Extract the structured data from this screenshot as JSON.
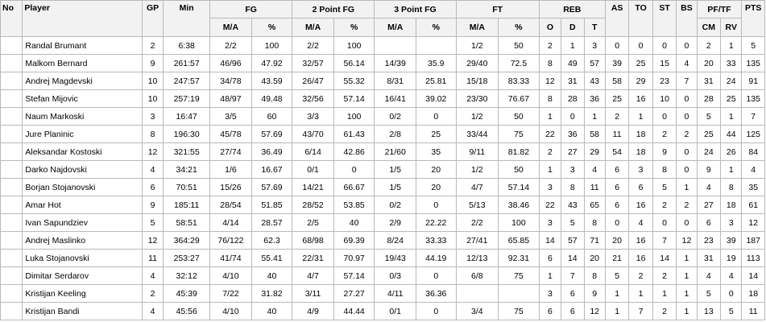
{
  "headers": {
    "no": "No",
    "player": "Player",
    "gp": "GP",
    "min": "Min",
    "fg": "FG",
    "fg2": "2 Point FG",
    "fg3": "3 Point FG",
    "ft": "FT",
    "reb": "REB",
    "as": "AS",
    "to": "TO",
    "st": "ST",
    "bs": "BS",
    "pftf": "PF/TF",
    "pts": "PTS",
    "ma": "M/A",
    "pct": "%",
    "o": "O",
    "d": "D",
    "t": "T",
    "cm": "CM",
    "rv": "RV"
  },
  "rows": [
    {
      "no": "",
      "player": "Randal Brumant",
      "gp": "2",
      "min": "6:38",
      "fg_ma": "2/2",
      "fg_pct": "100",
      "fg2_ma": "2/2",
      "fg2_pct": "100",
      "fg3_ma": "",
      "fg3_pct": "",
      "ft_ma": "1/2",
      "ft_pct": "50",
      "o": "2",
      "d": "1",
      "t": "3",
      "as": "0",
      "to": "0",
      "st": "0",
      "bs": "0",
      "cm": "2",
      "rv": "1",
      "pts": "5"
    },
    {
      "no": "",
      "player": "Malkom Bernard",
      "gp": "9",
      "min": "261:57",
      "fg_ma": "46/96",
      "fg_pct": "47.92",
      "fg2_ma": "32/57",
      "fg2_pct": "56.14",
      "fg3_ma": "14/39",
      "fg3_pct": "35.9",
      "ft_ma": "29/40",
      "ft_pct": "72.5",
      "o": "8",
      "d": "49",
      "t": "57",
      "as": "39",
      "to": "25",
      "st": "15",
      "bs": "4",
      "cm": "20",
      "rv": "33",
      "pts": "135"
    },
    {
      "no": "",
      "player": "Andrej Magdevski",
      "gp": "10",
      "min": "247:57",
      "fg_ma": "34/78",
      "fg_pct": "43.59",
      "fg2_ma": "26/47",
      "fg2_pct": "55.32",
      "fg3_ma": "8/31",
      "fg3_pct": "25.81",
      "ft_ma": "15/18",
      "ft_pct": "83.33",
      "o": "12",
      "d": "31",
      "t": "43",
      "as": "58",
      "to": "29",
      "st": "23",
      "bs": "7",
      "cm": "31",
      "rv": "24",
      "pts": "91"
    },
    {
      "no": "",
      "player": "Stefan Mijovic",
      "gp": "10",
      "min": "257:19",
      "fg_ma": "48/97",
      "fg_pct": "49.48",
      "fg2_ma": "32/56",
      "fg2_pct": "57.14",
      "fg3_ma": "16/41",
      "fg3_pct": "39.02",
      "ft_ma": "23/30",
      "ft_pct": "76.67",
      "o": "8",
      "d": "28",
      "t": "36",
      "as": "25",
      "to": "16",
      "st": "10",
      "bs": "0",
      "cm": "28",
      "rv": "25",
      "pts": "135"
    },
    {
      "no": "",
      "player": "Naum Markoski",
      "gp": "3",
      "min": "16:47",
      "fg_ma": "3/5",
      "fg_pct": "60",
      "fg2_ma": "3/3",
      "fg2_pct": "100",
      "fg3_ma": "0/2",
      "fg3_pct": "0",
      "ft_ma": "1/2",
      "ft_pct": "50",
      "o": "1",
      "d": "0",
      "t": "1",
      "as": "2",
      "to": "1",
      "st": "0",
      "bs": "0",
      "cm": "5",
      "rv": "1",
      "pts": "7"
    },
    {
      "no": "",
      "player": "Jure Planinic",
      "gp": "8",
      "min": "196:30",
      "fg_ma": "45/78",
      "fg_pct": "57.69",
      "fg2_ma": "43/70",
      "fg2_pct": "61.43",
      "fg3_ma": "2/8",
      "fg3_pct": "25",
      "ft_ma": "33/44",
      "ft_pct": "75",
      "o": "22",
      "d": "36",
      "t": "58",
      "as": "11",
      "to": "18",
      "st": "2",
      "bs": "2",
      "cm": "25",
      "rv": "44",
      "pts": "125"
    },
    {
      "no": "",
      "player": "Aleksandar Kostoski",
      "gp": "12",
      "min": "321:55",
      "fg_ma": "27/74",
      "fg_pct": "36.49",
      "fg2_ma": "6/14",
      "fg2_pct": "42.86",
      "fg3_ma": "21/60",
      "fg3_pct": "35",
      "ft_ma": "9/11",
      "ft_pct": "81.82",
      "o": "2",
      "d": "27",
      "t": "29",
      "as": "54",
      "to": "18",
      "st": "9",
      "bs": "0",
      "cm": "24",
      "rv": "26",
      "pts": "84"
    },
    {
      "no": "",
      "player": "Darko Najdovski",
      "gp": "4",
      "min": "34:21",
      "fg_ma": "1/6",
      "fg_pct": "16.67",
      "fg2_ma": "0/1",
      "fg2_pct": "0",
      "fg3_ma": "1/5",
      "fg3_pct": "20",
      "ft_ma": "1/2",
      "ft_pct": "50",
      "o": "1",
      "d": "3",
      "t": "4",
      "as": "6",
      "to": "3",
      "st": "8",
      "bs": "0",
      "cm": "9",
      "rv": "1",
      "pts": "4"
    },
    {
      "no": "",
      "player": "Borjan Stojanovski",
      "gp": "6",
      "min": "70:51",
      "fg_ma": "15/26",
      "fg_pct": "57.69",
      "fg2_ma": "14/21",
      "fg2_pct": "66.67",
      "fg3_ma": "1/5",
      "fg3_pct": "20",
      "ft_ma": "4/7",
      "ft_pct": "57.14",
      "o": "3",
      "d": "8",
      "t": "11",
      "as": "6",
      "to": "6",
      "st": "5",
      "bs": "1",
      "cm": "4",
      "rv": "8",
      "pts": "35"
    },
    {
      "no": "",
      "player": "Amar Hot",
      "gp": "9",
      "min": "185:11",
      "fg_ma": "28/54",
      "fg_pct": "51.85",
      "fg2_ma": "28/52",
      "fg2_pct": "53.85",
      "fg3_ma": "0/2",
      "fg3_pct": "0",
      "ft_ma": "5/13",
      "ft_pct": "38.46",
      "o": "22",
      "d": "43",
      "t": "65",
      "as": "6",
      "to": "16",
      "st": "2",
      "bs": "2",
      "cm": "27",
      "rv": "18",
      "pts": "61"
    },
    {
      "no": "",
      "player": "Ivan Sapundziev",
      "gp": "5",
      "min": "58:51",
      "fg_ma": "4/14",
      "fg_pct": "28.57",
      "fg2_ma": "2/5",
      "fg2_pct": "40",
      "fg3_ma": "2/9",
      "fg3_pct": "22.22",
      "ft_ma": "2/2",
      "ft_pct": "100",
      "o": "3",
      "d": "5",
      "t": "8",
      "as": "0",
      "to": "4",
      "st": "0",
      "bs": "0",
      "cm": "6",
      "rv": "3",
      "pts": "12"
    },
    {
      "no": "",
      "player": "Andrej Maslinko",
      "gp": "12",
      "min": "364:29",
      "fg_ma": "76/122",
      "fg_pct": "62.3",
      "fg2_ma": "68/98",
      "fg2_pct": "69.39",
      "fg3_ma": "8/24",
      "fg3_pct": "33.33",
      "ft_ma": "27/41",
      "ft_pct": "65.85",
      "o": "14",
      "d": "57",
      "t": "71",
      "as": "20",
      "to": "16",
      "st": "7",
      "bs": "12",
      "cm": "23",
      "rv": "39",
      "pts": "187"
    },
    {
      "no": "",
      "player": "Luka Stojanovski",
      "gp": "11",
      "min": "253:27",
      "fg_ma": "41/74",
      "fg_pct": "55.41",
      "fg2_ma": "22/31",
      "fg2_pct": "70.97",
      "fg3_ma": "19/43",
      "fg3_pct": "44.19",
      "ft_ma": "12/13",
      "ft_pct": "92.31",
      "o": "6",
      "d": "14",
      "t": "20",
      "as": "21",
      "to": "16",
      "st": "14",
      "bs": "1",
      "cm": "31",
      "rv": "19",
      "pts": "113"
    },
    {
      "no": "",
      "player": "Dimitar Serdarov",
      "gp": "4",
      "min": "32:12",
      "fg_ma": "4/10",
      "fg_pct": "40",
      "fg2_ma": "4/7",
      "fg2_pct": "57.14",
      "fg3_ma": "0/3",
      "fg3_pct": "0",
      "ft_ma": "6/8",
      "ft_pct": "75",
      "o": "1",
      "d": "7",
      "t": "8",
      "as": "5",
      "to": "2",
      "st": "2",
      "bs": "1",
      "cm": "4",
      "rv": "4",
      "pts": "14"
    },
    {
      "no": "",
      "player": "Kristijan Keeling",
      "gp": "2",
      "min": "45:39",
      "fg_ma": "7/22",
      "fg_pct": "31.82",
      "fg2_ma": "3/11",
      "fg2_pct": "27.27",
      "fg3_ma": "4/11",
      "fg3_pct": "36.36",
      "ft_ma": "",
      "ft_pct": "",
      "o": "3",
      "d": "6",
      "t": "9",
      "as": "1",
      "to": "1",
      "st": "1",
      "bs": "1",
      "cm": "5",
      "rv": "0",
      "pts": "18"
    },
    {
      "no": "",
      "player": "Kristijan Bandi",
      "gp": "4",
      "min": "45:56",
      "fg_ma": "4/10",
      "fg_pct": "40",
      "fg2_ma": "4/9",
      "fg2_pct": "44.44",
      "fg3_ma": "0/1",
      "fg3_pct": "0",
      "ft_ma": "3/4",
      "ft_pct": "75",
      "o": "6",
      "d": "6",
      "t": "12",
      "as": "1",
      "to": "7",
      "st": "2",
      "bs": "1",
      "cm": "13",
      "rv": "5",
      "pts": "11"
    }
  ]
}
